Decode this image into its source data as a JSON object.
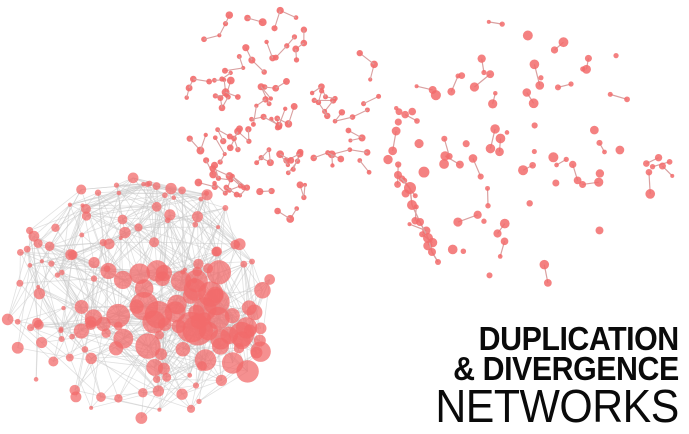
{
  "title": {
    "line1": "DUPLICATION",
    "line2": "& DIVERGENCE",
    "line3": "NETWORKS"
  },
  "colors": {
    "node": "#f26b6b",
    "edge_dense": "#c8c8c8",
    "edge_sparse": "#d9a0a0",
    "text": "#0a0a0a"
  },
  "panels": [
    "dense-network",
    "branching-network",
    "fragmented-network"
  ]
}
